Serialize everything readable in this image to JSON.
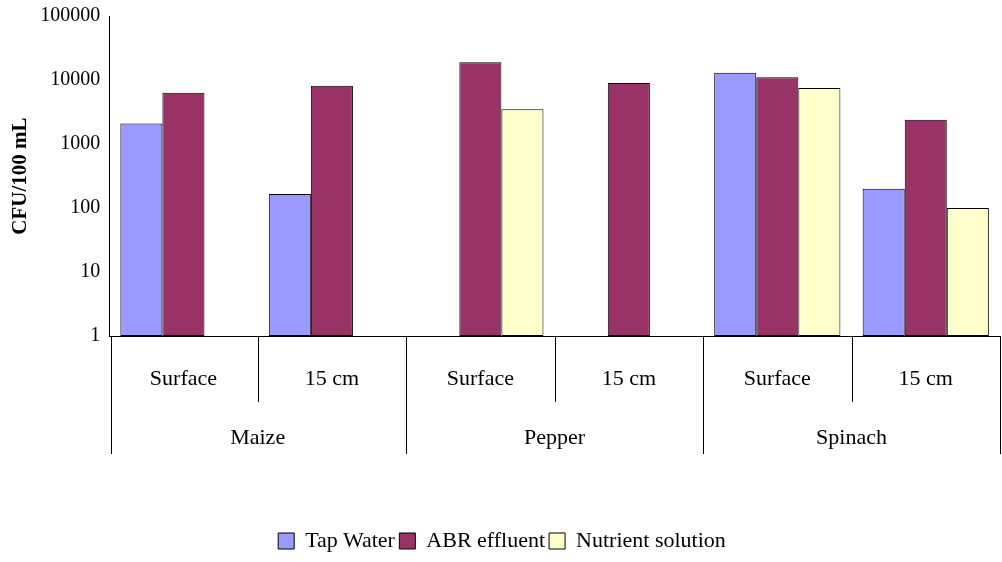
{
  "chart_data": {
    "type": "bar",
    "ylabel": "CFU/100 mL",
    "categories": [
      "Surface",
      "15 cm",
      "Surface",
      "15 cm",
      "Surface",
      "15 cm"
    ],
    "annotations": [
      "Maize",
      "Pepper",
      "Spinach"
    ],
    "series": [
      {
        "name": "Tap Water",
        "color": "#9999ff",
        "values": [
          2100,
          165,
          null,
          null,
          13000,
          200
        ]
      },
      {
        "name": "ABR effluent",
        "color": "#993366",
        "values": [
          6300,
          8100,
          19000,
          9000,
          11000,
          2400
        ]
      },
      {
        "name": "Nutrient solution",
        "color": "#ffffcc",
        "values": [
          null,
          null,
          3500,
          null,
          7500,
          100
        ]
      }
    ],
    "log": "y",
    "ylim": [
      1,
      100000
    ],
    "yticks": [
      1,
      10,
      100,
      1000,
      10000,
      100000
    ],
    "grid": false,
    "legend": "bottom"
  }
}
